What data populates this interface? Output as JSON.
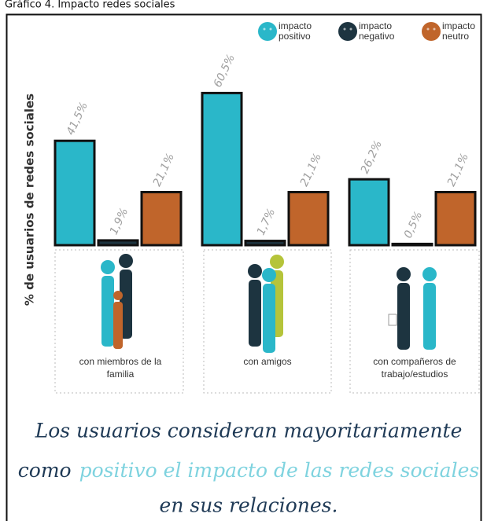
{
  "chart_data": {
    "type": "bar",
    "title": "Gráfico 4. Impacto redes sociales",
    "y_label": "% de usuarios de redes sociales",
    "categories": [
      "con miembros de la familia",
      "con amigos",
      "con compañeros de trabajo/estudios"
    ],
    "series": [
      {
        "name": "impacto positivo",
        "color": "#2ab7c9",
        "values": [
          41.5,
          60.5,
          26.2
        ],
        "value_labels": [
          "41,5%",
          "60,5%",
          "26,2%"
        ]
      },
      {
        "name": "impacto negativo",
        "color": "#1d3440",
        "values": [
          1.9,
          1.7,
          0.5
        ],
        "value_labels": [
          "1,9%",
          "1,7%",
          "0,5%"
        ]
      },
      {
        "name": "impacto neutro",
        "color": "#c0652b",
        "values": [
          21.1,
          21.1,
          21.1
        ],
        "value_labels": [
          "21,1%",
          "21,1%",
          "21,1%"
        ]
      }
    ],
    "ylim": [
      0,
      65
    ],
    "legend": "top-right",
    "annotation": {
      "line1": "Los usuarios consideran mayoritariamente",
      "line2a": "como",
      "line2b": "positivo el impacto de las redes sociales",
      "line3": "en sus relaciones."
    }
  }
}
